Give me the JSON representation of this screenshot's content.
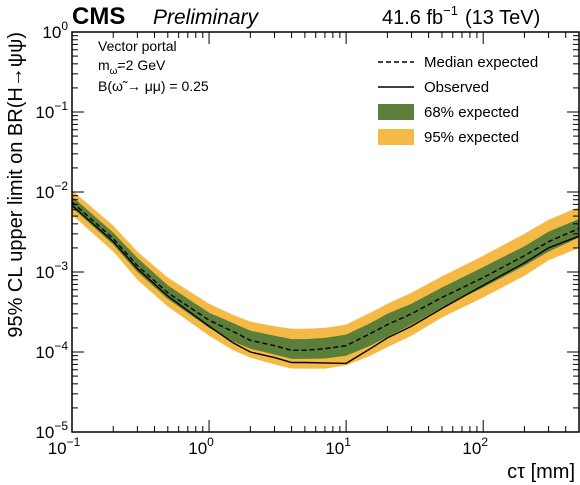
{
  "header": {
    "experiment": "CMS",
    "status": "Preliminary",
    "lumi_value": "41.6 fb",
    "lumi_exponent": "−1",
    "energy": "(13 TeV)"
  },
  "annotations": {
    "line1": "Vector portal",
    "line2": "m",
    "line2_sub": "ω̃",
    "line2_rest": "=2 GeV",
    "line3": "B(ω̃ → μμ) = 0.25"
  },
  "chart_data": {
    "type": "line",
    "xlabel": "cτ [mm]",
    "ylabel": "95% CL upper limit on BR(H→ψψ)",
    "xscale": "log",
    "yscale": "log",
    "xlim": [
      0.1,
      500
    ],
    "ylim": [
      1e-05,
      1
    ],
    "x_ticks": [
      {
        "value": 0.1,
        "base": "10",
        "exp": "−1"
      },
      {
        "value": 1,
        "base": "10",
        "exp": "0"
      },
      {
        "value": 10,
        "base": "10",
        "exp": "1"
      },
      {
        "value": 100,
        "base": "10",
        "exp": "2"
      }
    ],
    "y_ticks": [
      {
        "value": 1e-05,
        "base": "10",
        "exp": "−5"
      },
      {
        "value": 0.0001,
        "base": "10",
        "exp": "−4"
      },
      {
        "value": 0.001,
        "base": "10",
        "exp": "−3"
      },
      {
        "value": 0.01,
        "base": "10",
        "exp": "−2"
      },
      {
        "value": 0.1,
        "base": "10",
        "exp": "−1"
      },
      {
        "value": 1,
        "base": "10",
        "exp": "0"
      }
    ],
    "x": [
      0.1,
      0.2,
      0.3,
      0.5,
      1,
      1.5,
      2,
      3,
      4,
      5,
      7,
      10,
      15,
      20,
      30,
      50,
      100,
      200,
      300,
      500
    ],
    "series": [
      {
        "name": "Median expected",
        "style": "dashed",
        "values": [
          0.0075,
          0.0026,
          0.0012,
          0.00055,
          0.00025,
          0.00018,
          0.00014,
          0.00012,
          0.000105,
          0.000105,
          0.00011,
          0.00012,
          0.00017,
          0.00022,
          0.0003,
          0.00048,
          0.00085,
          0.0016,
          0.0024,
          0.0035
        ]
      },
      {
        "name": "Observed",
        "style": "solid",
        "values": [
          0.0068,
          0.0024,
          0.0011,
          0.0005,
          0.00021,
          0.00013,
          0.0001,
          8.5e-05,
          7.4e-05,
          7.4e-05,
          7.3e-05,
          7.2e-05,
          0.00011,
          0.00015,
          0.00021,
          0.00035,
          0.00068,
          0.0013,
          0.002,
          0.0028
        ]
      }
    ],
    "bands": [
      {
        "name": "95% expected",
        "color": "#F5BA45",
        "low": [
          0.0052,
          0.0018,
          0.0008,
          0.00037,
          0.00016,
          0.000105,
          8.5e-05,
          7e-05,
          6.2e-05,
          6.2e-05,
          6.2e-05,
          6.8e-05,
          9e-05,
          0.000115,
          0.00016,
          0.00027,
          0.00048,
          0.0009,
          0.0014,
          0.002
        ],
        "high": [
          0.0105,
          0.0038,
          0.0018,
          0.00085,
          0.0004,
          0.00029,
          0.00024,
          0.00021,
          0.000195,
          0.000195,
          0.0002,
          0.00022,
          0.00031,
          0.0004,
          0.00055,
          0.00088,
          0.0016,
          0.003,
          0.0045,
          0.0065
        ]
      },
      {
        "name": "68% expected",
        "color": "#5B7F3A",
        "low": [
          0.0064,
          0.0022,
          0.001,
          0.00046,
          0.0002,
          0.000135,
          0.00011,
          9.3e-05,
          8.2e-05,
          8.2e-05,
          8.3e-05,
          9e-05,
          0.00012,
          0.000155,
          0.00022,
          0.00036,
          0.00064,
          0.0012,
          0.0018,
          0.0027
        ],
        "high": [
          0.0088,
          0.0031,
          0.0015,
          0.00068,
          0.00031,
          0.00023,
          0.000185,
          0.00016,
          0.000145,
          0.000145,
          0.00015,
          0.000165,
          0.00023,
          0.0003,
          0.0004,
          0.00064,
          0.00115,
          0.0021,
          0.0032,
          0.0046
        ]
      }
    ],
    "legend": {
      "placement": "top-right",
      "entries": [
        {
          "label": "Median expected",
          "kind": "dashed-line"
        },
        {
          "label": "Observed",
          "kind": "solid-line"
        },
        {
          "label": "68% expected",
          "kind": "box",
          "color": "#5B7F3A"
        },
        {
          "label": "95% expected",
          "kind": "box",
          "color": "#F5BA45"
        }
      ]
    },
    "grid": false
  }
}
